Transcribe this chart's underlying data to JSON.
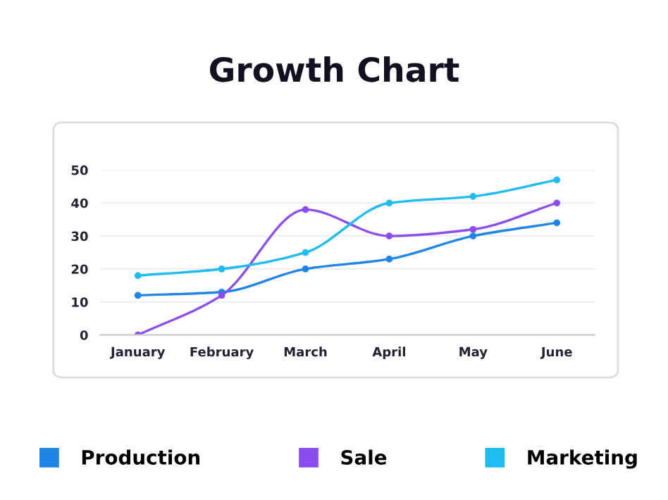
{
  "chart_data": {
    "type": "line",
    "title": "Growth Chart",
    "categories": [
      "January",
      "February",
      "March",
      "April",
      "May",
      "June"
    ],
    "series": [
      {
        "name": "Production",
        "color": "#1f86e8",
        "values": [
          12,
          13,
          20,
          23,
          30,
          34
        ]
      },
      {
        "name": "Sale",
        "color": "#8b4df0",
        "values": [
          0,
          12,
          38,
          30,
          32,
          40
        ]
      },
      {
        "name": "Marketing",
        "color": "#1ebcf0",
        "values": [
          18,
          20,
          25,
          40,
          42,
          47
        ]
      }
    ],
    "ylim": [
      0,
      50
    ],
    "yticks": [
      0,
      10,
      20,
      30,
      40,
      50
    ],
    "grid": "y",
    "legend": "bottom",
    "marker": "circle",
    "line_style": "solid"
  }
}
